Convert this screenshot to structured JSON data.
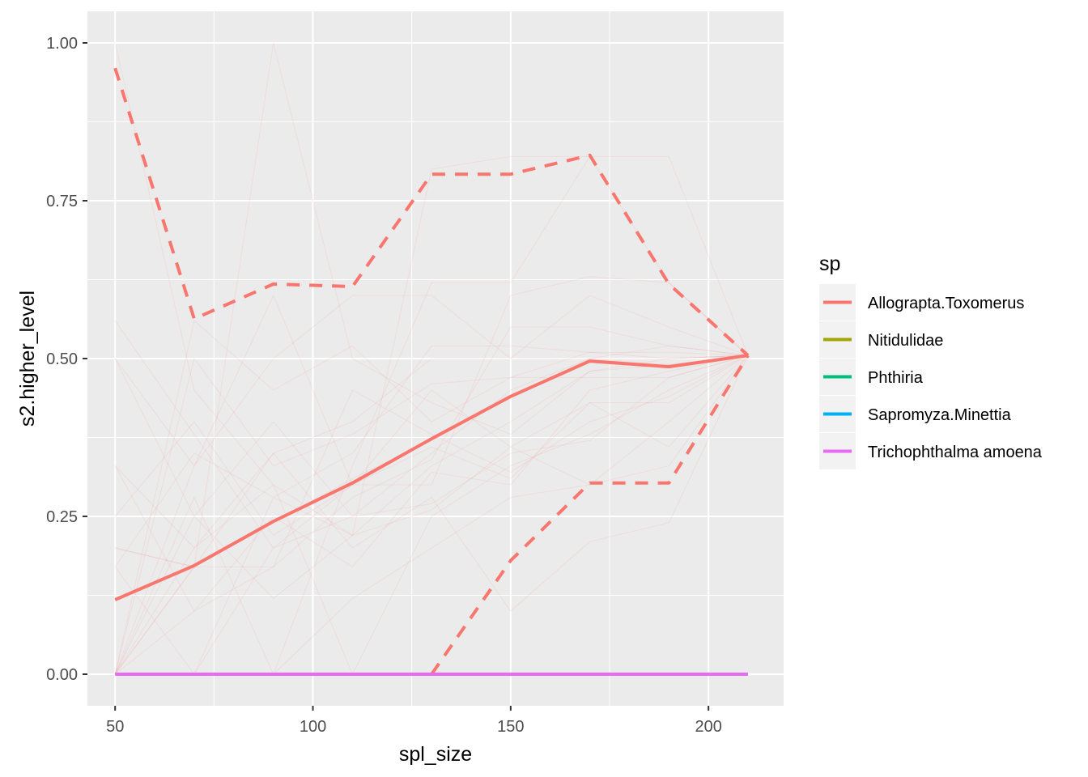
{
  "chart_data": {
    "type": "line",
    "xlabel": "spl_size",
    "ylabel": "s2.higher_level",
    "xlim": [
      43,
      219
    ],
    "ylim": [
      -0.05,
      1.05
    ],
    "x_ticks": [
      50,
      100,
      150,
      200
    ],
    "x_tick_labels": [
      "50",
      "100",
      "150",
      "200"
    ],
    "y_ticks": [
      0,
      0.25,
      0.5,
      0.75,
      1
    ],
    "y_tick_labels": [
      "0.00",
      "0.25",
      "0.50",
      "0.75",
      "1.00"
    ],
    "grid": true,
    "background_panel": "#ebebeb",
    "legend": {
      "title": "sp",
      "position": "right",
      "entries": [
        {
          "label": "Allograpta.Toxomerus",
          "color": "#f8766d"
        },
        {
          "label": "Nitidulidae",
          "color": "#a3a500"
        },
        {
          "label": "Phthiria",
          "color": "#00bf7d"
        },
        {
          "label": "Sapromyza.Minettia",
          "color": "#00b0f6"
        },
        {
          "label": "Trichophthalma amoena",
          "color": "#e76bf3"
        }
      ]
    },
    "x": [
      50,
      70,
      90,
      110,
      130,
      150,
      170,
      190,
      210
    ],
    "series": [
      {
        "name": "Allograpta.Toxomerus",
        "role": "mean",
        "style": "solid",
        "color": "#f8766d",
        "values": [
          0.118,
          0.172,
          0.242,
          0.303,
          0.373,
          0.44,
          0.496,
          0.487,
          0.505
        ]
      },
      {
        "name": "Allograpta.Toxomerus",
        "role": "upper",
        "style": "dashed",
        "color": "#f8766d",
        "values": [
          0.96,
          0.563,
          0.618,
          0.614,
          0.792,
          0.792,
          0.822,
          0.618,
          0.505
        ]
      },
      {
        "name": "Allograpta.Toxomerus",
        "role": "lower",
        "style": "dashed",
        "color": "#f8766d",
        "values": [
          null,
          null,
          null,
          null,
          0.0,
          0.18,
          0.303,
          0.303,
          0.505
        ]
      },
      {
        "name": "Trichophthalma amoena",
        "role": "mean",
        "style": "solid",
        "color": "#e76bf3",
        "values": [
          0,
          0,
          0,
          0,
          0,
          0,
          0,
          0,
          0
        ]
      }
    ],
    "replicates": {
      "series": "Allograpta.Toxomerus",
      "color": "#f8766d",
      "lines": [
        [
          0,
          0.17,
          0.24,
          0.31,
          0.37,
          0.44,
          0.5,
          0.49,
          0.505
        ],
        [
          0,
          0.56,
          0.45,
          0.52,
          0.4,
          0.47,
          0.51,
          0.5,
          0.505
        ],
        [
          1.0,
          0.45,
          0.3,
          0.22,
          0.33,
          0.4,
          0.48,
          0.49,
          0.505
        ],
        [
          0.5,
          0.33,
          0.6,
          0.3,
          0.45,
          0.36,
          0.43,
          0.43,
          0.505
        ],
        [
          0,
          0,
          0.2,
          0.25,
          0.27,
          0.35,
          0.37,
          0.47,
          0.505
        ],
        [
          0.2,
          0.17,
          0.17,
          0.28,
          0.34,
          0.55,
          0.55,
          0.52,
          0.505
        ],
        [
          0,
          0.28,
          0,
          0.33,
          0.62,
          0.62,
          0.82,
          0.62,
          0.505
        ],
        [
          0.33,
          0.2,
          0.35,
          0.4,
          0.5,
          0.5,
          0.6,
          0.55,
          0.505
        ],
        [
          0,
          0.1,
          0.25,
          0.17,
          0.32,
          0.3,
          0.45,
          0.48,
          0.505
        ],
        [
          0.17,
          0.35,
          0.28,
          0.35,
          0.52,
          0.52,
          0.51,
          0.51,
          0.505
        ],
        [
          0,
          0,
          0,
          0.12,
          0.2,
          0.28,
          0.3,
          0.33,
          0.505
        ],
        [
          0.5,
          0.25,
          0.4,
          0.25,
          0.35,
          0.45,
          0.5,
          0.52,
          0.505
        ],
        [
          0,
          0.17,
          1.0,
          0.5,
          0.43,
          0.38,
          0.48,
          0.5,
          0.505
        ],
        [
          0.25,
          0.4,
          0.22,
          0.3,
          0.3,
          0.6,
          0.63,
          0.62,
          0.505
        ],
        [
          0,
          0.2,
          0.3,
          0,
          0.25,
          0.33,
          0.38,
          0.45,
          0.505
        ],
        [
          0.33,
          0.1,
          0.17,
          0.45,
          0.38,
          0.32,
          0.4,
          0.44,
          0.505
        ],
        [
          0,
          0.33,
          0.5,
          0.6,
          0.6,
          0.5,
          0.5,
          0.5,
          0.505
        ],
        [
          0.17,
          0,
          0.28,
          0.22,
          0.8,
          0.82,
          0.82,
          0.82,
          0.505
        ],
        [
          0,
          0.25,
          0.12,
          0.22,
          0.26,
          0.36,
          0.3,
          0.4,
          0.505
        ],
        [
          0.2,
          0.17,
          0.35,
          0.2,
          0.28,
          0.1,
          0.21,
          0.24,
          0.505
        ],
        [
          0,
          0.5,
          0.33,
          0.38,
          0.46,
          0.47,
          0.47,
          0.47,
          0.505
        ],
        [
          0.56,
          0.38,
          0.2,
          0.3,
          0.36,
          0.31,
          0.43,
          0.36,
          0.505
        ]
      ]
    }
  }
}
